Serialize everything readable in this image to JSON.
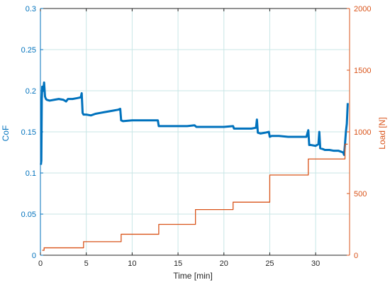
{
  "chart_data": {
    "type": "line",
    "title": "",
    "xlabel": "Time [min]",
    "ylabel_left": "CoF",
    "ylabel_right": "Load [N]",
    "xlim": [
      0,
      33.7
    ],
    "ylim_left": [
      0,
      0.3
    ],
    "ylim_right": [
      0,
      2000
    ],
    "xticks": [
      0,
      5,
      10,
      15,
      20,
      25,
      30
    ],
    "yticks_left": [
      0,
      0.05,
      0.1,
      0.15,
      0.2,
      0.25,
      0.3
    ],
    "yticks_right": [
      0,
      500,
      1000,
      1500,
      2000
    ],
    "grid": true,
    "colors": {
      "cof": "#0072bd",
      "load": "#d95319",
      "grid": "#c8e6e6",
      "text": "#262626"
    },
    "series": [
      {
        "axis": "left",
        "color": "#0072bd",
        "x": [
          0.05,
          0.1,
          0.15,
          0.2,
          0.3,
          0.4,
          0.5,
          0.6,
          0.7,
          1.0,
          1.5,
          2.0,
          2.5,
          2.8,
          3.0,
          3.5,
          4.0,
          4.4,
          4.5,
          4.6,
          4.7,
          5.0,
          5.5,
          6.0,
          6.5,
          7.0,
          7.5,
          8.0,
          8.5,
          8.7,
          8.8,
          9.0,
          10,
          11,
          12,
          12.8,
          12.9,
          13.1,
          14,
          15,
          16,
          16.8,
          17.0,
          18,
          19,
          20,
          21,
          21.1,
          22,
          23,
          23.5,
          23.6,
          23.7,
          24,
          24.5,
          24.9,
          25.0,
          25.2,
          26,
          27,
          28,
          29,
          29.2,
          29.3,
          29.5,
          30,
          30.3,
          30.4,
          30.5,
          30.8,
          31,
          31.5,
          32,
          32.5,
          33,
          33.1,
          33.2,
          33.3,
          33.4,
          33.5
        ],
        "y": [
          0.11,
          0.115,
          0.19,
          0.205,
          0.2,
          0.21,
          0.193,
          0.19,
          0.189,
          0.188,
          0.189,
          0.19,
          0.189,
          0.187,
          0.19,
          0.19,
          0.191,
          0.192,
          0.197,
          0.173,
          0.171,
          0.171,
          0.17,
          0.172,
          0.173,
          0.174,
          0.175,
          0.176,
          0.177,
          0.178,
          0.164,
          0.163,
          0.164,
          0.164,
          0.164,
          0.164,
          0.157,
          0.157,
          0.157,
          0.157,
          0.157,
          0.158,
          0.156,
          0.156,
          0.156,
          0.156,
          0.157,
          0.154,
          0.154,
          0.154,
          0.155,
          0.165,
          0.149,
          0.148,
          0.149,
          0.15,
          0.144,
          0.145,
          0.145,
          0.144,
          0.144,
          0.144,
          0.152,
          0.134,
          0.134,
          0.133,
          0.135,
          0.15,
          0.13,
          0.129,
          0.128,
          0.128,
          0.127,
          0.127,
          0.125,
          0.122,
          0.135,
          0.15,
          0.16,
          0.185
        ]
      },
      {
        "axis": "right",
        "color": "#d95319",
        "x": [
          0.2,
          0.4,
          0.4,
          4.7,
          4.7,
          8.8,
          8.8,
          12.9,
          12.9,
          16.9,
          16.9,
          21.0,
          21.0,
          25.0,
          25.0,
          29.2,
          29.2,
          33.2,
          33.2,
          33.5
        ],
        "y": [
          40,
          40,
          60,
          60,
          110,
          110,
          170,
          170,
          250,
          250,
          370,
          370,
          430,
          430,
          650,
          650,
          780,
          780,
          900,
          900
        ]
      }
    ]
  }
}
